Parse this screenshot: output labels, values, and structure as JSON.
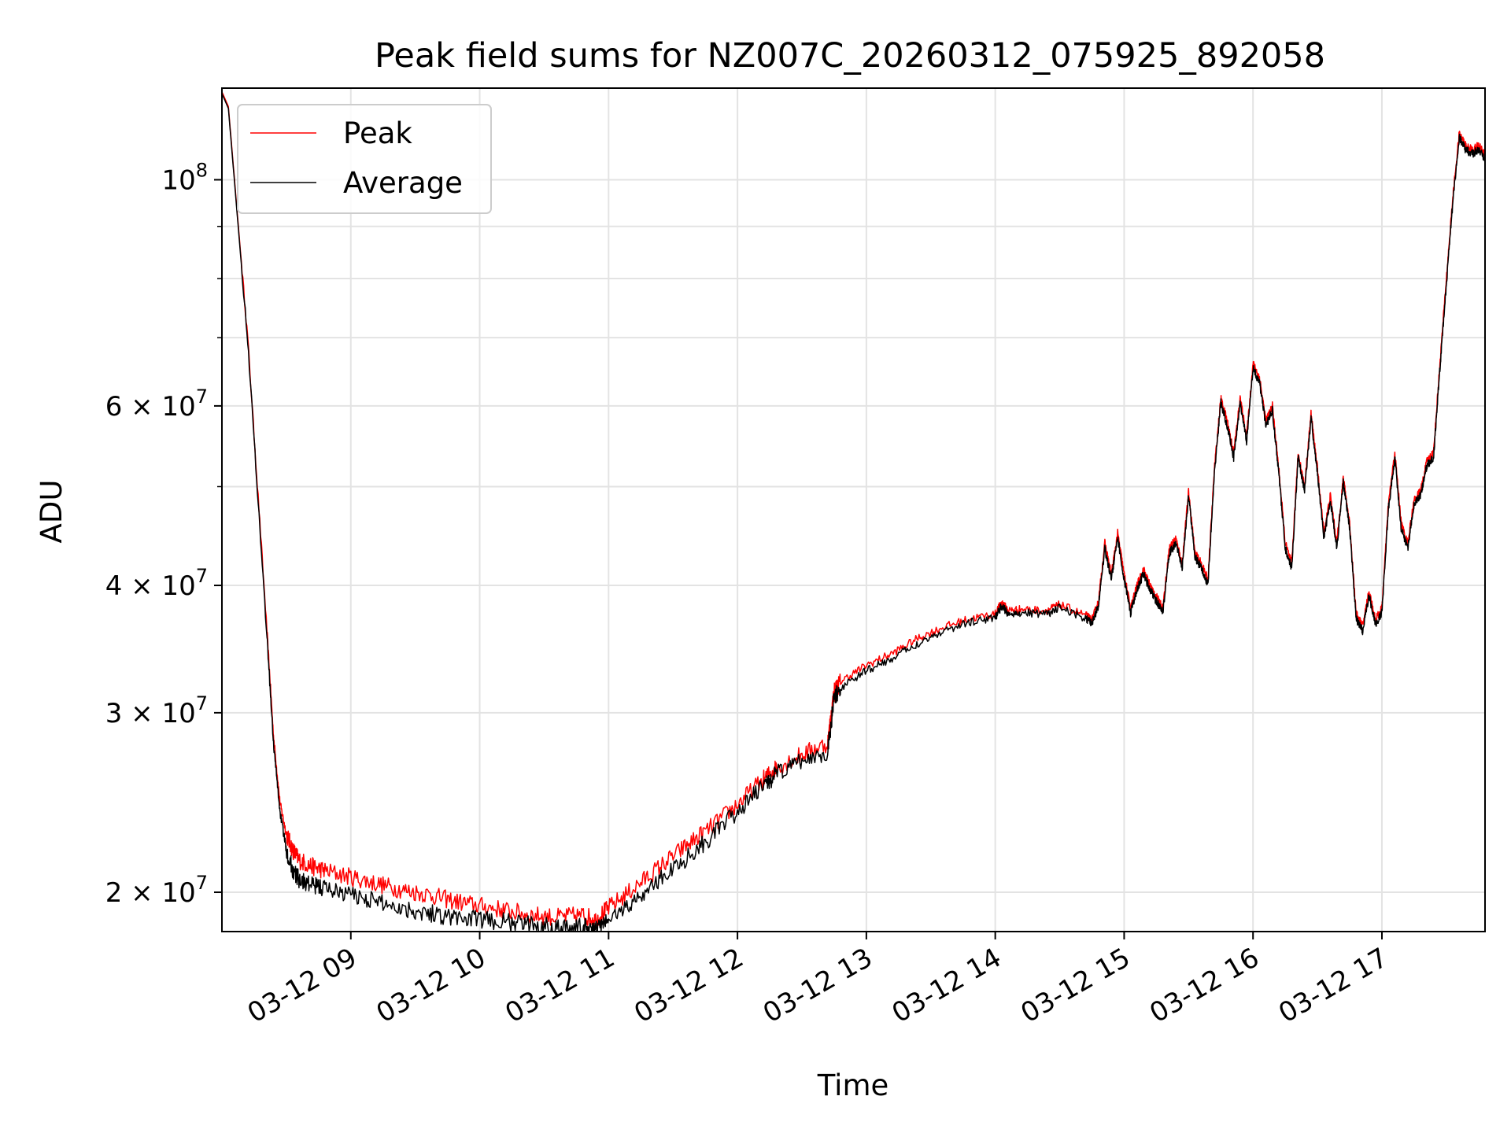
{
  "chart_data": {
    "type": "line",
    "title": "Peak field sums for NZ007C_20260312_075925_892058",
    "xlabel": "Time",
    "ylabel": "ADU",
    "yscale": "log",
    "xlim": [
      8.0,
      17.8
    ],
    "ylim": [
      18300000,
      123000000
    ],
    "grid": true,
    "legend_position": "upper-left",
    "x_ticks": [
      {
        "value": 9,
        "label": "03-12 09"
      },
      {
        "value": 10,
        "label": "03-12 10"
      },
      {
        "value": 11,
        "label": "03-12 11"
      },
      {
        "value": 12,
        "label": "03-12 12"
      },
      {
        "value": 13,
        "label": "03-12 13"
      },
      {
        "value": 14,
        "label": "03-12 14"
      },
      {
        "value": 15,
        "label": "03-12 15"
      },
      {
        "value": 16,
        "label": "03-12 16"
      },
      {
        "value": 17,
        "label": "03-12 17"
      }
    ],
    "y_ticks": [
      {
        "value": 20000000,
        "base": "2 × 10",
        "exp": "7"
      },
      {
        "value": 30000000,
        "base": "3 × 10",
        "exp": "7"
      },
      {
        "value": 40000000,
        "base": "4 × 10",
        "exp": "7"
      },
      {
        "value": 60000000,
        "base": "6 × 10",
        "exp": "7"
      },
      {
        "value": 100000000,
        "base": "10",
        "exp": "8"
      }
    ],
    "y_minor_ticks": [
      50000000,
      70000000,
      80000000,
      90000000
    ],
    "series": [
      {
        "name": "Peak",
        "color": "#ff0000",
        "x": [
          8.0,
          8.05,
          8.2,
          8.35,
          8.4,
          8.45,
          8.5,
          8.55,
          8.6,
          8.7,
          8.8,
          9.0,
          9.2,
          9.4,
          9.6,
          9.8,
          10.0,
          10.2,
          10.4,
          10.6,
          10.8,
          10.9,
          11.0,
          11.2,
          11.4,
          11.6,
          11.8,
          12.0,
          12.2,
          12.3,
          12.5,
          12.7,
          12.75,
          12.8,
          13.0,
          13.2,
          13.4,
          13.6,
          13.8,
          14.0,
          14.05,
          14.1,
          14.2,
          14.4,
          14.5,
          14.7,
          14.75,
          14.8,
          14.85,
          14.9,
          14.95,
          15.0,
          15.05,
          15.1,
          15.15,
          15.2,
          15.25,
          15.3,
          15.35,
          15.4,
          15.45,
          15.5,
          15.55,
          15.6,
          15.65,
          15.7,
          15.75,
          15.8,
          15.85,
          15.9,
          15.95,
          16.0,
          16.05,
          16.1,
          16.15,
          16.2,
          16.25,
          16.3,
          16.35,
          16.4,
          16.45,
          16.5,
          16.55,
          16.6,
          16.65,
          16.7,
          16.75,
          16.8,
          16.85,
          16.9,
          16.95,
          17.0,
          17.05,
          17.1,
          17.15,
          17.2,
          17.25,
          17.3,
          17.35,
          17.4,
          17.45,
          17.5,
          17.55,
          17.6,
          17.65,
          17.7,
          17.75,
          17.8
        ],
        "values": [
          122000000,
          118000000,
          70000000,
          36000000,
          28500000,
          24500000,
          22800000,
          22000000,
          21500000,
          21200000,
          21000000,
          20700000,
          20400000,
          20100000,
          19900000,
          19600000,
          19400000,
          19200000,
          19000000,
          18900000,
          19000000,
          18800000,
          19300000,
          20200000,
          21200000,
          22200000,
          23200000,
          24400000,
          25800000,
          26500000,
          27300000,
          28000000,
          31500000,
          32200000,
          33400000,
          34300000,
          35500000,
          36400000,
          37100000,
          37500000,
          38500000,
          37800000,
          37900000,
          37800000,
          38300000,
          37400000,
          37000000,
          38500000,
          44000000,
          41000000,
          45000000,
          41000000,
          38000000,
          40000000,
          41500000,
          40000000,
          39000000,
          38000000,
          43500000,
          44500000,
          42000000,
          49500000,
          43000000,
          42000000,
          40500000,
          52000000,
          61000000,
          58000000,
          54000000,
          61000000,
          56000000,
          66000000,
          64000000,
          58000000,
          60000000,
          52000000,
          44000000,
          42000000,
          54000000,
          50000000,
          59000000,
          52000000,
          45000000,
          49000000,
          44000000,
          51000000,
          46000000,
          37500000,
          36500000,
          39500000,
          37000000,
          38000000,
          48000000,
          54000000,
          46000000,
          44000000,
          48500000,
          49500000,
          53000000,
          54000000,
          66000000,
          80000000,
          96000000,
          111000000,
          108000000,
          107000000,
          108000000,
          106000000
        ]
      },
      {
        "name": "Average",
        "color": "#000000",
        "x": [
          8.0,
          8.05,
          8.2,
          8.35,
          8.4,
          8.45,
          8.5,
          8.55,
          8.6,
          8.7,
          8.8,
          9.0,
          9.2,
          9.4,
          9.6,
          9.8,
          10.0,
          10.2,
          10.4,
          10.6,
          10.8,
          10.9,
          11.0,
          11.2,
          11.4,
          11.6,
          11.8,
          12.0,
          12.2,
          12.3,
          12.5,
          12.7,
          12.75,
          12.8,
          13.0,
          13.2,
          13.4,
          13.6,
          13.8,
          14.0,
          14.05,
          14.1,
          14.2,
          14.4,
          14.5,
          14.7,
          14.75,
          14.8,
          14.85,
          14.9,
          14.95,
          15.0,
          15.05,
          15.1,
          15.15,
          15.2,
          15.25,
          15.3,
          15.35,
          15.4,
          15.45,
          15.5,
          15.55,
          15.6,
          15.65,
          15.7,
          15.75,
          15.8,
          15.85,
          15.9,
          15.95,
          16.0,
          16.05,
          16.1,
          16.15,
          16.2,
          16.25,
          16.3,
          16.35,
          16.4,
          16.45,
          16.5,
          16.55,
          16.6,
          16.65,
          16.7,
          16.75,
          16.8,
          16.85,
          16.9,
          16.95,
          17.0,
          17.05,
          17.1,
          17.15,
          17.2,
          17.25,
          17.3,
          17.35,
          17.4,
          17.45,
          17.5,
          17.55,
          17.6,
          17.65,
          17.7,
          17.75,
          17.8
        ],
        "values": [
          121500000,
          117500000,
          69500000,
          35500000,
          28000000,
          24000000,
          22000000,
          21000000,
          20600000,
          20300000,
          20200000,
          19900000,
          19600000,
          19300000,
          19100000,
          18900000,
          18800000,
          18700000,
          18600000,
          18500000,
          18500000,
          18400000,
          18800000,
          19600000,
          20600000,
          21600000,
          22700000,
          24000000,
          25400000,
          26100000,
          26900000,
          27500000,
          31000000,
          31700000,
          33000000,
          33900000,
          35100000,
          36100000,
          36800000,
          37200000,
          38200000,
          37500000,
          37600000,
          37500000,
          38000000,
          37100000,
          36700000,
          38200000,
          43500000,
          40600000,
          44500000,
          40600000,
          37600000,
          39600000,
          41100000,
          39600000,
          38600000,
          37600000,
          43000000,
          44000000,
          41600000,
          49000000,
          42600000,
          41600000,
          40100000,
          51500000,
          60400000,
          57400000,
          53400000,
          60400000,
          55400000,
          65300000,
          63300000,
          57400000,
          59400000,
          51500000,
          43500000,
          41600000,
          53400000,
          49500000,
          58400000,
          51500000,
          44500000,
          48500000,
          43500000,
          50500000,
          45500000,
          37100000,
          36100000,
          39100000,
          36600000,
          37600000,
          47500000,
          53400000,
          45500000,
          43500000,
          48000000,
          49000000,
          52500000,
          53400000,
          65300000,
          79000000,
          95000000,
          110000000,
          107000000,
          106000000,
          107000000,
          105000000
        ]
      }
    ]
  }
}
